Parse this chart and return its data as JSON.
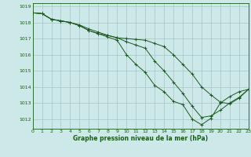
{
  "title": "Graphe pression niveau de la mer (hPa)",
  "background_color": "#cce8e8",
  "grid_color": "#aacccc",
  "line_color": "#1a5c1a",
  "x_min": 0,
  "x_max": 23,
  "y_min": 1011.4,
  "y_max": 1019.2,
  "yticks": [
    1012,
    1013,
    1014,
    1015,
    1016,
    1017,
    1018,
    1019
  ],
  "xticks": [
    0,
    1,
    2,
    3,
    4,
    5,
    6,
    7,
    8,
    9,
    10,
    11,
    12,
    13,
    14,
    15,
    16,
    17,
    18,
    19,
    20,
    21,
    22,
    23
  ],
  "series": [
    [
      1018.6,
      1018.55,
      1018.2,
      1018.1,
      1018.0,
      1017.8,
      1017.5,
      1017.3,
      1017.1,
      1016.9,
      1016.0,
      1015.4,
      1014.9,
      1014.1,
      1013.7,
      1013.1,
      1012.9,
      1012.0,
      1011.65,
      1012.05,
      1013.0,
      1013.4,
      1013.7,
      1013.85
    ],
    [
      1018.6,
      1018.55,
      1018.2,
      1018.1,
      1018.0,
      1017.8,
      1017.5,
      1017.3,
      1017.2,
      1017.05,
      1016.8,
      1016.6,
      1016.4,
      1015.6,
      1015.0,
      1014.3,
      1013.6,
      1012.8,
      1012.1,
      1012.2,
      1012.55,
      1013.0,
      1013.35,
      1013.85
    ],
    [
      1018.6,
      1018.55,
      1018.2,
      1018.1,
      1018.0,
      1017.85,
      1017.6,
      1017.4,
      1017.2,
      1017.05,
      1017.0,
      1016.95,
      1016.9,
      1016.7,
      1016.5,
      1016.0,
      1015.4,
      1014.8,
      1014.0,
      1013.5,
      1013.05,
      1012.95,
      1013.3,
      1013.85
    ]
  ]
}
